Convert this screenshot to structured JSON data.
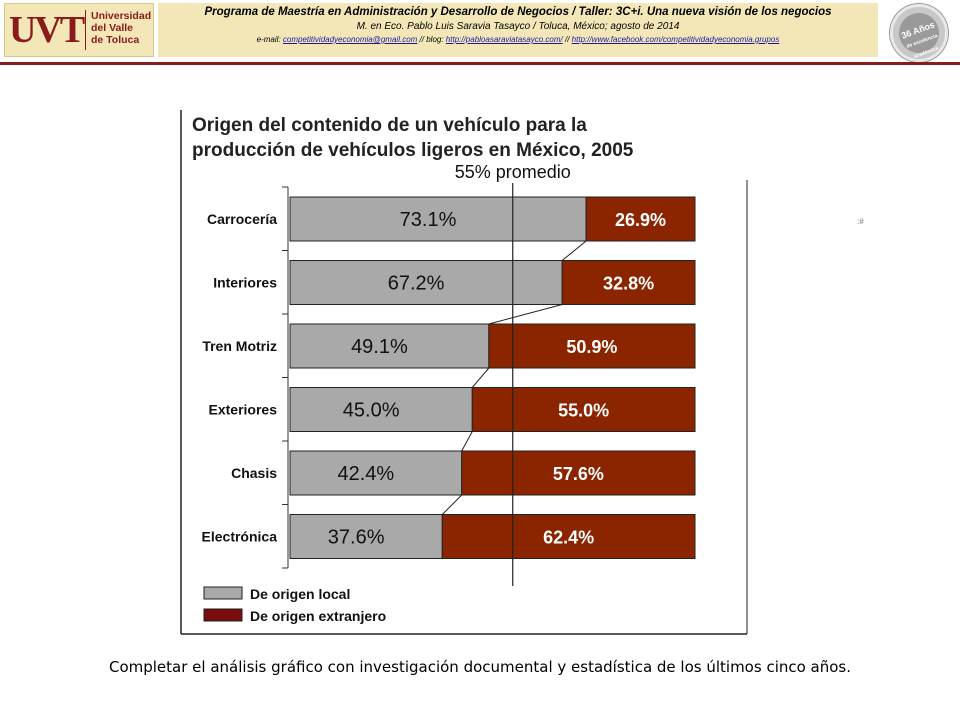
{
  "header": {
    "logo": {
      "mark": "UVT",
      "lines": [
        "Universidad",
        "del Valle",
        "de Toluca"
      ]
    },
    "program": "Programa de Maestría en Administración y Desarrollo de Negocios / Taller: 3C+i. Una nueva visión de los negocios",
    "author": "M. en Eco. Pablo Luis Saravia Tasayco / Toluca, México; agosto de 2014",
    "contact_prefix": "e-mail:",
    "email": "competitividadyeconomia@gmail.com",
    "blog_sep": "// blog:",
    "blog": "http://pabloasaraviatasayco.com/",
    "sep2": "//",
    "facebook": "http://www.facebook.com/competitividadyeconomia.grupos",
    "badge": {
      "number": "36 Años",
      "line2": "de excelencia",
      "line3": "académica"
    }
  },
  "colors": {
    "brand": "#8b1a1a",
    "header_bg": "#f3e7b8",
    "local": "#a9a9a9",
    "foreign": "#8b2500"
  },
  "chart_data": {
    "type": "bar",
    "stacked": true,
    "orientation": "horizontal",
    "title_lines": [
      "Origen del contenido de un vehículo para la",
      "producción de vehículos ligeros en México, 2005"
    ],
    "reference_line": {
      "value": 55,
      "label": "55% promedio"
    },
    "categories": [
      "Carrocería",
      "Interiores",
      "Tren Motriz",
      "Exteriores",
      "Chasis",
      "Electrónica"
    ],
    "series": [
      {
        "name": "De origen local",
        "values": [
          73.1,
          67.2,
          49.1,
          45.0,
          42.4,
          37.6
        ],
        "labels": [
          "73.1%",
          "67.2%",
          "49.1%",
          "45.0%",
          "42.4%",
          "37.6%"
        ],
        "color": "#a9a9a9"
      },
      {
        "name": "De origen extranjero",
        "values": [
          26.9,
          32.8,
          50.9,
          55.0,
          57.6,
          62.4
        ],
        "labels": [
          "26.9%",
          "32.8%",
          "50.9%",
          "55.0%",
          "57.6%",
          "62.4%"
        ],
        "color": "#8b2500"
      }
    ],
    "xlim": [
      0,
      100
    ],
    "legend": "bottom-left"
  },
  "footer_note": "Completar el análisis gráfico con investigación documental y estadística de los últimos cinco años."
}
